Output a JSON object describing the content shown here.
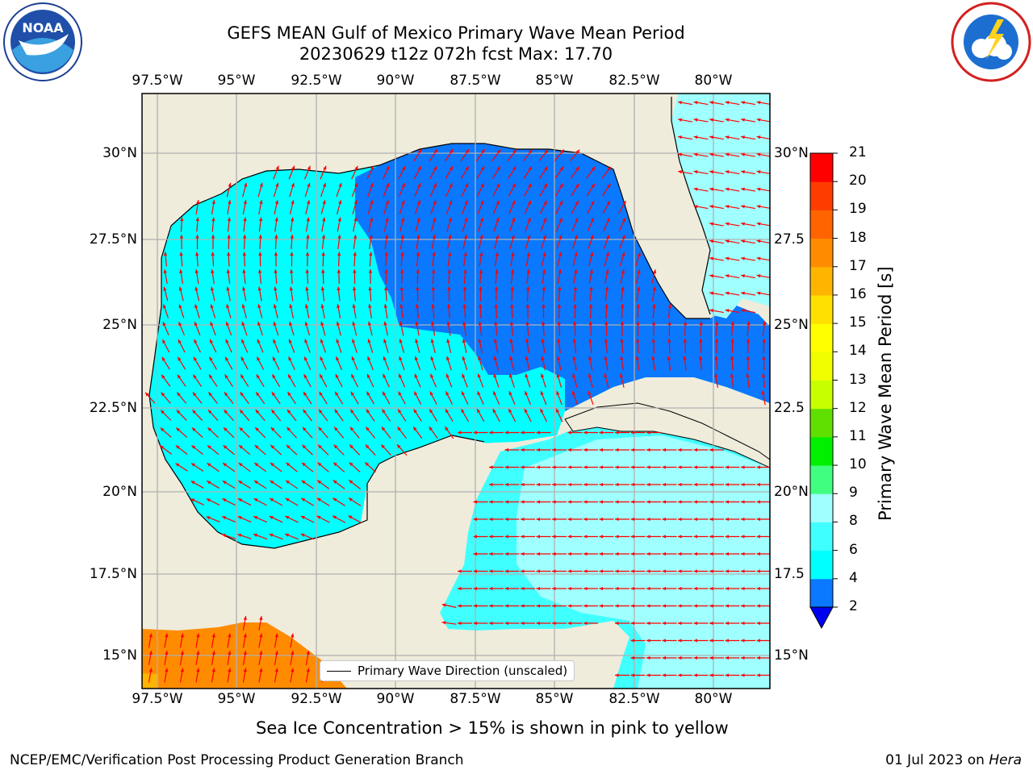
{
  "header": {
    "title_line1": "GEFS MEAN Gulf of Mexico Primary Wave Mean Period",
    "title_line2": "20230629 t12z 072h fcst   Max: 17.70"
  },
  "logos": {
    "left": "noaa-logo",
    "right": "nws-logo"
  },
  "axes": {
    "lon_labels": [
      "97.5°W",
      "95°W",
      "92.5°W",
      "90°W",
      "87.5°W",
      "85°W",
      "82.5°W",
      "80°W"
    ],
    "lat_labels_left": [
      "30°N",
      "27.5°N",
      "25°N",
      "22.5°N",
      "20°N",
      "17.5°N",
      "15°N"
    ],
    "lat_labels_right": [
      "30°N",
      "27.5",
      "25°N",
      "22.5",
      "20°N",
      "17.5",
      "15°N"
    ]
  },
  "legend": {
    "label": "Primary Wave Direction (unscaled)"
  },
  "colorbar": {
    "title": "Primary Wave Mean Period [s]",
    "labels": [
      "2",
      "4",
      "6",
      "8",
      "9",
      "10",
      "11",
      "12",
      "13",
      "14",
      "15",
      "16",
      "17",
      "18",
      "19",
      "20",
      "21"
    ],
    "colors": [
      "#0a78ff",
      "#00ffff",
      "#40ffff",
      "#a0ffff",
      "#40ff80",
      "#00f000",
      "#60e000",
      "#c8ff00",
      "#f0ff00",
      "#ffff00",
      "#ffe000",
      "#ffb400",
      "#ff8c00",
      "#ff6400",
      "#ff3c00",
      "#ff0000"
    ],
    "extend_color": "#0000f0"
  },
  "colors": {
    "land": "#efecdc",
    "grid": "#b0b0b0",
    "arrow": "#ff0000",
    "coast": "#000000"
  },
  "caption": "Sea Ice Concentration > 15% is shown in pink to yellow",
  "footer": {
    "left": "NCEP/EMC/Verification Post Processing Product Generation Branch",
    "right_date": "01 Jul 2023 on ",
    "right_host": "Hera"
  }
}
